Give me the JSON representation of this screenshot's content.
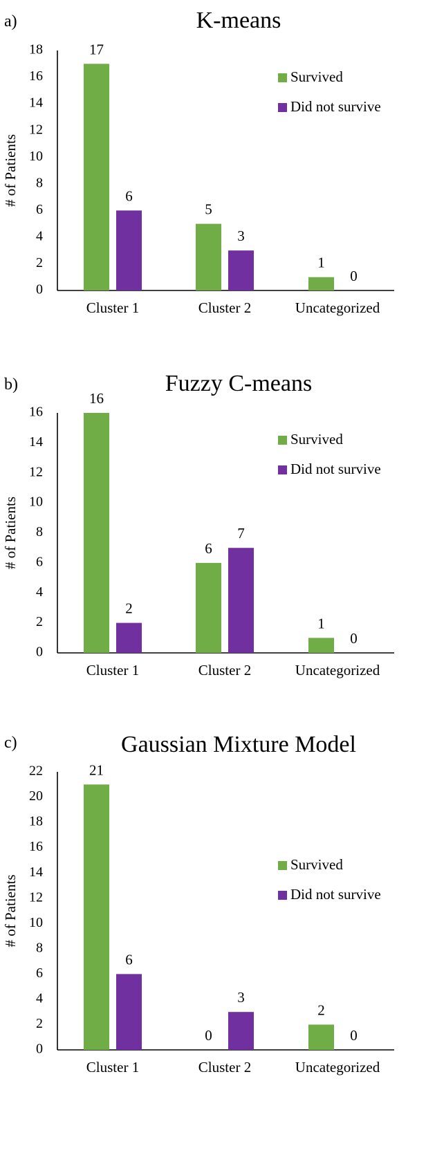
{
  "colors": {
    "survived": "#70ad47",
    "did_not_survive": "#7030a0"
  },
  "chart_data": [
    {
      "type": "bar",
      "panel_label": "a)",
      "title": "K-means",
      "ylabel": "# of Patients",
      "categories": [
        "Cluster 1",
        "Cluster 2",
        "Uncategorized"
      ],
      "ylim": [
        0,
        18
      ],
      "yticks": [
        0,
        2,
        4,
        6,
        8,
        10,
        12,
        14,
        16,
        18
      ],
      "legend_position": "top-right",
      "series": [
        {
          "name": "Survived",
          "color": "#70ad47",
          "values": [
            17,
            5,
            1
          ]
        },
        {
          "name": "Did not survive",
          "color": "#7030a0",
          "values": [
            6,
            3,
            0
          ]
        }
      ]
    },
    {
      "type": "bar",
      "panel_label": "b)",
      "title": "Fuzzy C-means",
      "ylabel": "# of Patients",
      "categories": [
        "Cluster 1",
        "Cluster 2",
        "Uncategorized"
      ],
      "ylim": [
        0,
        16
      ],
      "yticks": [
        0,
        2,
        4,
        6,
        8,
        10,
        12,
        14,
        16
      ],
      "legend_position": "top-right",
      "series": [
        {
          "name": "Survived",
          "color": "#70ad47",
          "values": [
            16,
            6,
            1
          ]
        },
        {
          "name": "Did not survive",
          "color": "#7030a0",
          "values": [
            2,
            7,
            0
          ]
        }
      ]
    },
    {
      "type": "bar",
      "panel_label": "c)",
      "title": "Gaussian Mixture Model",
      "ylabel": "# of Patients",
      "categories": [
        "Cluster 1",
        "Cluster 2",
        "Uncategorized"
      ],
      "ylim": [
        0,
        22
      ],
      "yticks": [
        0,
        2,
        4,
        6,
        8,
        10,
        12,
        14,
        16,
        18,
        20,
        22
      ],
      "legend_position": "right",
      "series": [
        {
          "name": "Survived",
          "color": "#70ad47",
          "values": [
            21,
            0,
            2
          ]
        },
        {
          "name": "Did not survive",
          "color": "#7030a0",
          "values": [
            6,
            3,
            0
          ]
        }
      ]
    }
  ]
}
